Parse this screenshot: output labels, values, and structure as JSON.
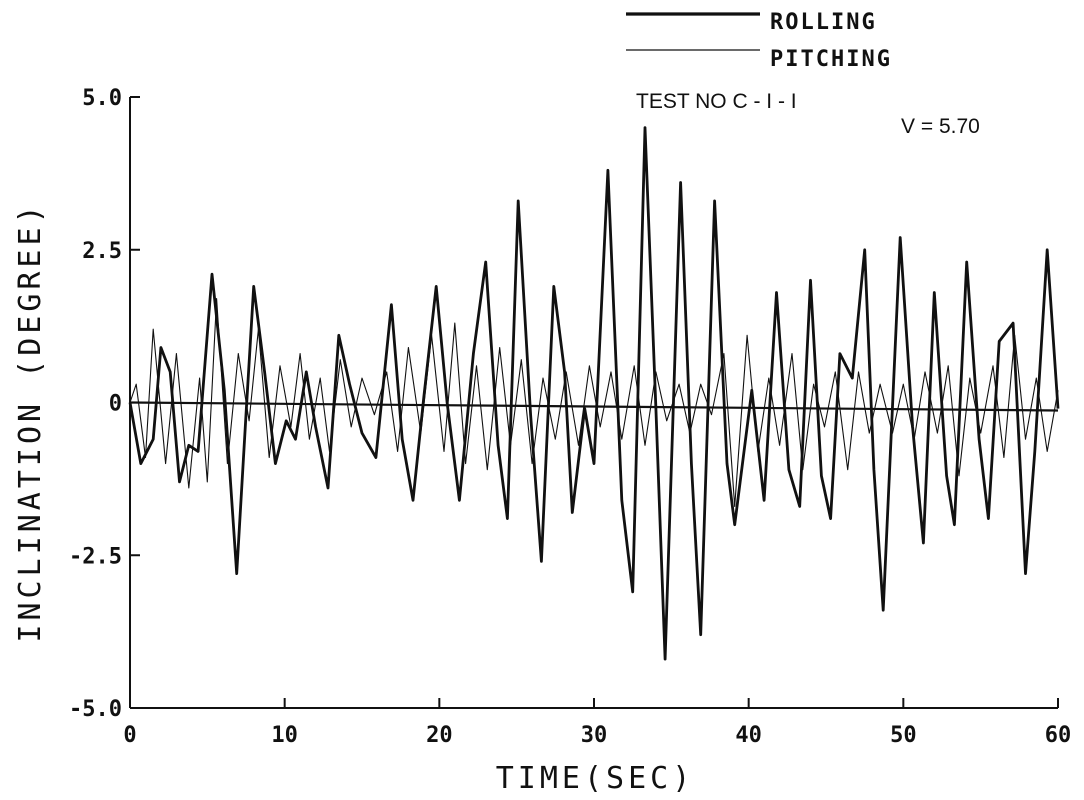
{
  "chart_data": {
    "type": "line",
    "title": "",
    "xlabel": "TIME(SEC)",
    "ylabel": "INCLINATION (DEGREE)",
    "xlim": [
      0,
      60
    ],
    "ylim": [
      -5.0,
      5.0
    ],
    "x_ticks": [
      0,
      10,
      20,
      30,
      40,
      50,
      60
    ],
    "x_tick_labels": [
      "0",
      "10",
      "20",
      "30",
      "40",
      "50",
      "60"
    ],
    "y_ticks": [
      5.0,
      2.5,
      0,
      -2.5,
      -5.0
    ],
    "y_tick_labels": [
      "5.0",
      "2.5",
      "0",
      "-2.5",
      "-5.0"
    ],
    "grid": false,
    "legend_position": "top-right",
    "annotations": [
      "TEST NO C - I - I",
      "V = 5.70"
    ],
    "series": [
      {
        "name": "ROLLING",
        "style": "thick",
        "points": [
          [
            0.0,
            0.0
          ],
          [
            0.7,
            -1.0
          ],
          [
            1.5,
            -0.6
          ],
          [
            2.0,
            0.9
          ],
          [
            2.6,
            0.5
          ],
          [
            3.2,
            -1.3
          ],
          [
            3.8,
            -0.7
          ],
          [
            4.4,
            -0.8
          ],
          [
            5.3,
            2.1
          ],
          [
            6.1,
            0.2
          ],
          [
            6.9,
            -2.8
          ],
          [
            7.5,
            -0.2
          ],
          [
            8.0,
            1.9
          ],
          [
            8.7,
            0.5
          ],
          [
            9.4,
            -1.0
          ],
          [
            10.1,
            -0.3
          ],
          [
            10.7,
            -0.6
          ],
          [
            11.4,
            0.5
          ],
          [
            12.0,
            -0.4
          ],
          [
            12.8,
            -1.4
          ],
          [
            13.5,
            1.1
          ],
          [
            14.2,
            0.3
          ],
          [
            15.0,
            -0.5
          ],
          [
            15.9,
            -0.9
          ],
          [
            16.9,
            1.6
          ],
          [
            17.6,
            -0.6
          ],
          [
            18.3,
            -1.6
          ],
          [
            19.0,
            0.1
          ],
          [
            19.8,
            1.9
          ],
          [
            20.5,
            0.0
          ],
          [
            21.3,
            -1.6
          ],
          [
            22.2,
            0.8
          ],
          [
            23.0,
            2.3
          ],
          [
            23.8,
            -0.7
          ],
          [
            24.4,
            -1.9
          ],
          [
            25.1,
            3.3
          ],
          [
            25.9,
            -0.2
          ],
          [
            26.6,
            -2.6
          ],
          [
            27.4,
            1.9
          ],
          [
            28.1,
            0.5
          ],
          [
            28.6,
            -1.8
          ],
          [
            29.4,
            -0.1
          ],
          [
            30.0,
            -1.0
          ],
          [
            30.9,
            3.8
          ],
          [
            31.8,
            -1.6
          ],
          [
            32.5,
            -3.1
          ],
          [
            33.3,
            4.5
          ],
          [
            34.0,
            -0.1
          ],
          [
            34.6,
            -4.2
          ],
          [
            35.6,
            3.6
          ],
          [
            36.3,
            -1.0
          ],
          [
            36.9,
            -3.8
          ],
          [
            37.8,
            3.3
          ],
          [
            38.6,
            -1.0
          ],
          [
            39.1,
            -2.0
          ],
          [
            40.2,
            0.2
          ],
          [
            41.0,
            -1.6
          ],
          [
            41.8,
            1.8
          ],
          [
            42.6,
            -1.1
          ],
          [
            43.3,
            -1.7
          ],
          [
            44.0,
            2.0
          ],
          [
            44.7,
            -1.2
          ],
          [
            45.3,
            -1.9
          ],
          [
            45.9,
            0.8
          ],
          [
            46.7,
            0.4
          ],
          [
            47.5,
            2.5
          ],
          [
            48.1,
            -1.1
          ],
          [
            48.7,
            -3.4
          ],
          [
            49.8,
            2.7
          ],
          [
            50.6,
            -0.4
          ],
          [
            51.3,
            -2.3
          ],
          [
            52.0,
            1.8
          ],
          [
            52.8,
            -1.2
          ],
          [
            53.3,
            -2.0
          ],
          [
            54.1,
            2.3
          ],
          [
            54.9,
            -0.6
          ],
          [
            55.5,
            -1.9
          ],
          [
            56.2,
            1.0
          ],
          [
            57.1,
            1.3
          ],
          [
            57.9,
            -2.8
          ],
          [
            58.5,
            -0.8
          ],
          [
            59.3,
            2.5
          ],
          [
            60.0,
            -0.1
          ]
        ]
      },
      {
        "name": "PITCHING",
        "style": "thin",
        "points": [
          [
            0.0,
            0.0
          ],
          [
            0.4,
            0.3
          ],
          [
            1.0,
            -0.9
          ],
          [
            1.5,
            1.2
          ],
          [
            2.3,
            -1.0
          ],
          [
            3.0,
            0.8
          ],
          [
            3.8,
            -1.4
          ],
          [
            4.5,
            0.4
          ],
          [
            5.0,
            -1.3
          ],
          [
            5.6,
            1.7
          ],
          [
            6.3,
            -1.0
          ],
          [
            7.0,
            0.8
          ],
          [
            7.7,
            -0.3
          ],
          [
            8.3,
            1.2
          ],
          [
            9.0,
            -0.9
          ],
          [
            9.7,
            0.6
          ],
          [
            10.4,
            -0.4
          ],
          [
            11.0,
            0.8
          ],
          [
            11.6,
            -0.6
          ],
          [
            12.3,
            0.4
          ],
          [
            12.9,
            -0.8
          ],
          [
            13.6,
            0.7
          ],
          [
            14.3,
            -0.4
          ],
          [
            15.0,
            0.4
          ],
          [
            15.8,
            -0.2
          ],
          [
            16.6,
            0.5
          ],
          [
            17.3,
            -0.8
          ],
          [
            18.0,
            0.9
          ],
          [
            18.8,
            -0.5
          ],
          [
            19.5,
            1.1
          ],
          [
            20.3,
            -0.8
          ],
          [
            21.0,
            1.3
          ],
          [
            21.7,
            -1.0
          ],
          [
            22.4,
            0.6
          ],
          [
            23.1,
            -1.1
          ],
          [
            23.9,
            0.9
          ],
          [
            24.6,
            -0.7
          ],
          [
            25.3,
            0.7
          ],
          [
            26.0,
            -1.0
          ],
          [
            26.7,
            0.4
          ],
          [
            27.5,
            -0.6
          ],
          [
            28.2,
            0.5
          ],
          [
            29.0,
            -0.7
          ],
          [
            29.7,
            0.6
          ],
          [
            30.4,
            -0.4
          ],
          [
            31.1,
            0.5
          ],
          [
            31.8,
            -0.6
          ],
          [
            32.6,
            0.6
          ],
          [
            33.3,
            -0.7
          ],
          [
            34.0,
            0.5
          ],
          [
            34.7,
            -0.3
          ],
          [
            35.5,
            0.3
          ],
          [
            36.2,
            -0.5
          ],
          [
            36.9,
            0.3
          ],
          [
            37.6,
            -0.2
          ],
          [
            38.4,
            0.8
          ],
          [
            39.1,
            -1.7
          ],
          [
            39.9,
            1.1
          ],
          [
            40.6,
            -0.8
          ],
          [
            41.3,
            0.4
          ],
          [
            42.0,
            -0.7
          ],
          [
            42.8,
            0.8
          ],
          [
            43.5,
            -1.1
          ],
          [
            44.2,
            0.3
          ],
          [
            44.9,
            -0.4
          ],
          [
            45.6,
            0.5
          ],
          [
            46.4,
            -1.1
          ],
          [
            47.1,
            0.5
          ],
          [
            47.8,
            -0.5
          ],
          [
            48.5,
            0.3
          ],
          [
            49.3,
            -0.5
          ],
          [
            50.0,
            0.3
          ],
          [
            50.7,
            -0.6
          ],
          [
            51.4,
            0.5
          ],
          [
            52.2,
            -0.5
          ],
          [
            52.9,
            0.6
          ],
          [
            53.6,
            -1.2
          ],
          [
            54.3,
            0.4
          ],
          [
            55.0,
            -0.5
          ],
          [
            55.8,
            0.6
          ],
          [
            56.5,
            -0.9
          ],
          [
            57.2,
            1.1
          ],
          [
            57.9,
            -0.6
          ],
          [
            58.6,
            0.4
          ],
          [
            59.3,
            -0.8
          ],
          [
            60.0,
            0.2
          ]
        ]
      }
    ]
  }
}
